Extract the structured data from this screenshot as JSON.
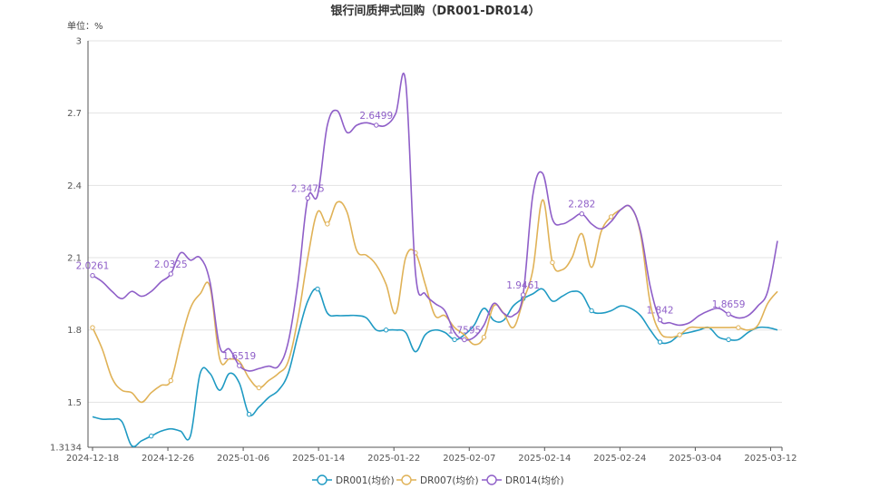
{
  "chart_data": {
    "type": "line",
    "title": "银行间质押式回购（DR001-DR014）",
    "ylabel": "单位：%",
    "xlabel": "",
    "ylim": [
      1.3134,
      3
    ],
    "yticks": [
      1.3134,
      1.5,
      1.8,
      2.1,
      2.4,
      2.7,
      3
    ],
    "ytick_labels": [
      "1.3134",
      "1.5",
      "1.8",
      "2.1",
      "2.4",
      "2.7",
      "3"
    ],
    "x_ticks": [
      "2024-12-18",
      "2024-12-26",
      "2025-01-06",
      "2025-01-14",
      "2025-01-22",
      "2025-02-07",
      "2025-02-14",
      "2025-02-24",
      "2025-03-04",
      "2025-03-12"
    ],
    "grid": "horizontal",
    "legend": "bottom-center",
    "colors": {
      "DR001": "#1f9ac3",
      "DR007": "#e0b257",
      "DR014": "#8f5fc8"
    },
    "series": [
      {
        "name": "DR001(均价)",
        "values": [
          1.44,
          1.43,
          1.43,
          1.42,
          1.32,
          1.34,
          1.36,
          1.38,
          1.39,
          1.38,
          1.36,
          1.62,
          1.62,
          1.55,
          1.62,
          1.58,
          1.45,
          1.48,
          1.52,
          1.55,
          1.62,
          1.78,
          1.92,
          1.97,
          1.87,
          1.86,
          1.86,
          1.86,
          1.85,
          1.8,
          1.8,
          1.8,
          1.79,
          1.71,
          1.78,
          1.8,
          1.79,
          1.76,
          1.78,
          1.82,
          1.89,
          1.84,
          1.84,
          1.9,
          1.93,
          1.95,
          1.97,
          1.92,
          1.94,
          1.96,
          1.95,
          1.88,
          1.87,
          1.88,
          1.9,
          1.89,
          1.86,
          1.8,
          1.75,
          1.75,
          1.78,
          1.79,
          1.8,
          1.81,
          1.77,
          1.76,
          1.76,
          1.79,
          1.81,
          1.81,
          1.8
        ],
        "labels": [
          {
            "i": 6,
            "text": ""
          },
          {
            "i": 16,
            "text": ""
          },
          {
            "i": 23,
            "text": ""
          },
          {
            "i": 30,
            "text": ""
          },
          {
            "i": 37,
            "text": ""
          },
          {
            "i": 44,
            "text": ""
          },
          {
            "i": 51,
            "text": ""
          },
          {
            "i": 58,
            "text": ""
          },
          {
            "i": 65,
            "text": ""
          }
        ]
      },
      {
        "name": "DR007(均价)",
        "values": [
          1.81,
          1.72,
          1.6,
          1.55,
          1.54,
          1.5,
          1.54,
          1.57,
          1.59,
          1.75,
          1.89,
          1.95,
          1.98,
          1.68,
          1.68,
          1.67,
          1.6,
          1.56,
          1.59,
          1.62,
          1.67,
          1.85,
          2.1,
          2.29,
          2.24,
          2.33,
          2.29,
          2.13,
          2.11,
          2.07,
          1.99,
          1.87,
          2.1,
          2.12,
          1.99,
          1.86,
          1.86,
          1.81,
          1.78,
          1.74,
          1.77,
          1.9,
          1.87,
          1.81,
          1.92,
          2.05,
          2.34,
          2.08,
          2.05,
          2.1,
          2.2,
          2.06,
          2.21,
          2.27,
          2.3,
          2.31,
          2.2,
          1.91,
          1.79,
          1.77,
          1.78,
          1.81,
          1.81,
          1.81,
          1.81,
          1.81,
          1.81,
          1.8,
          1.82,
          1.91,
          1.96
        ],
        "labels": [
          {
            "i": 0,
            "text": ""
          },
          {
            "i": 8,
            "text": ""
          },
          {
            "i": 17,
            "text": ""
          },
          {
            "i": 24,
            "text": ""
          },
          {
            "i": 33,
            "text": ""
          },
          {
            "i": 40,
            "text": ""
          },
          {
            "i": 47,
            "text": ""
          },
          {
            "i": 53,
            "text": ""
          },
          {
            "i": 60,
            "text": ""
          },
          {
            "i": 66,
            "text": ""
          }
        ]
      },
      {
        "name": "DR014(均价)",
        "values": [
          2.0261,
          2.0,
          1.96,
          1.93,
          1.96,
          1.94,
          1.96,
          2.0,
          2.0325,
          2.12,
          2.09,
          2.1,
          2.0,
          1.73,
          1.72,
          1.6519,
          1.63,
          1.64,
          1.65,
          1.65,
          1.75,
          2.0,
          2.3475,
          2.36,
          2.65,
          2.71,
          2.62,
          2.65,
          2.66,
          2.6499,
          2.65,
          2.7,
          2.83,
          2.04,
          1.95,
          1.91,
          1.88,
          1.79,
          1.7595,
          1.77,
          1.82,
          1.91,
          1.87,
          1.86,
          1.9461,
          2.36,
          2.45,
          2.26,
          2.24,
          2.26,
          2.282,
          2.24,
          2.22,
          2.25,
          2.3,
          2.31,
          2.21,
          1.98,
          1.842,
          1.83,
          1.82,
          1.83,
          1.86,
          1.88,
          1.89,
          1.8659,
          1.85,
          1.86,
          1.9,
          1.96,
          2.17
        ],
        "labels": [
          {
            "i": 0,
            "text": "2.0261"
          },
          {
            "i": 8,
            "text": "2.0325"
          },
          {
            "i": 15,
            "text": "1.6519"
          },
          {
            "i": 22,
            "text": "2.3475"
          },
          {
            "i": 29,
            "text": "2.6499"
          },
          {
            "i": 38,
            "text": "1.7595"
          },
          {
            "i": 44,
            "text": "1.9461"
          },
          {
            "i": 50,
            "text": "2.282"
          },
          {
            "i": 58,
            "text": "1.842"
          },
          {
            "i": 65,
            "text": "1.8659"
          }
        ]
      }
    ]
  }
}
